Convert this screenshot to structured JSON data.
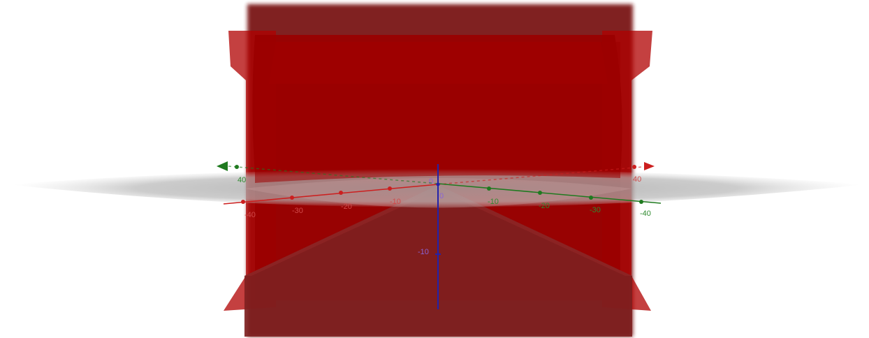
{
  "x_axis": {
    "color": "#cc1f1f",
    "ticks": [
      "-40",
      "-30",
      "-20",
      "-10"
    ],
    "end_label": "40"
  },
  "y_axis": {
    "color": "#1f7a1f",
    "ticks": [
      "-10",
      "-20",
      "-30",
      "-40"
    ],
    "end_label": "40"
  },
  "z_axis": {
    "color": "#2222aa",
    "top_label": "0",
    "origin_label": "0",
    "ticks": [
      "-10"
    ]
  },
  "surface_color": "#8e0000",
  "plane_color": "#b8b8b8"
}
